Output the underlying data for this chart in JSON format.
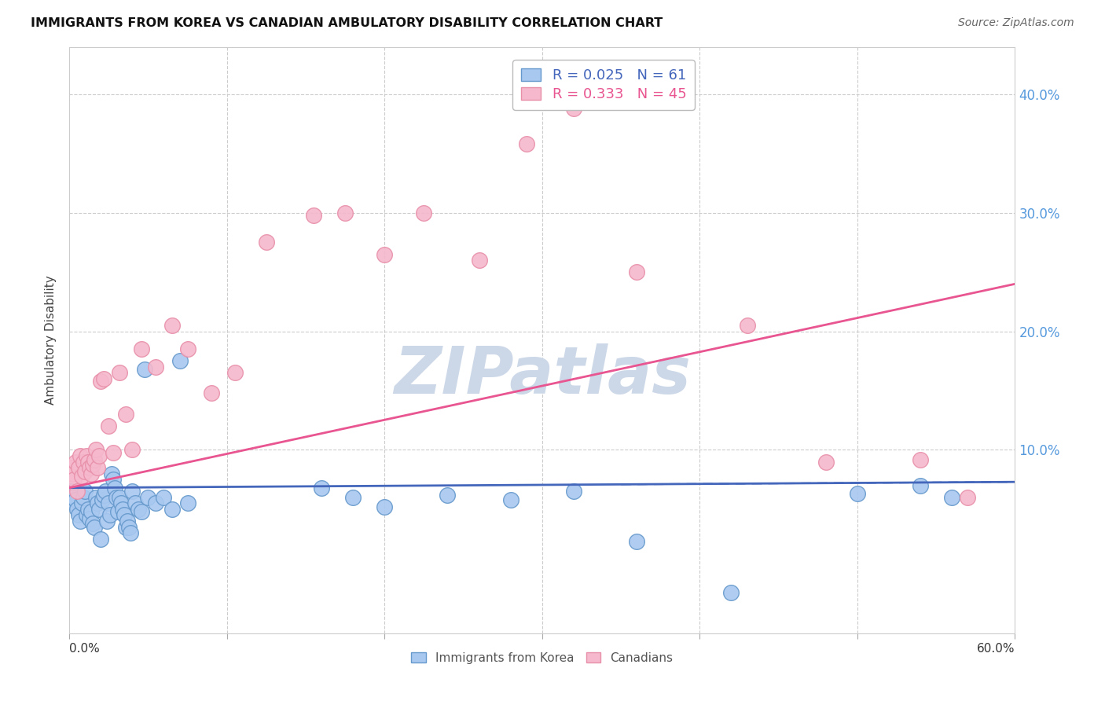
{
  "title": "IMMIGRANTS FROM KOREA VS CANADIAN AMBULATORY DISABILITY CORRELATION CHART",
  "source": "Source: ZipAtlas.com",
  "ylabel": "Ambulatory Disability",
  "xlim": [
    0.0,
    0.6
  ],
  "ylim": [
    -0.055,
    0.44
  ],
  "ytick_values": [
    0.1,
    0.2,
    0.3,
    0.4
  ],
  "ytick_labels": [
    "10.0%",
    "20.0%",
    "30.0%",
    "40.0%"
  ],
  "xtick_values": [
    0.0,
    0.1,
    0.2,
    0.3,
    0.4,
    0.5,
    0.6
  ],
  "color_korea": "#a8c8f0",
  "color_canada": "#f5b8cc",
  "edge_korea": "#6699cc",
  "edge_canada": "#e890aa",
  "line_color_korea": "#4466bb",
  "line_color_canada": "#e85590",
  "watermark_color": "#ccd8e8",
  "background_color": "#ffffff",
  "grid_color": "#cccccc",
  "korea_line_y0": 0.068,
  "korea_line_y1": 0.073,
  "canada_line_y0": 0.068,
  "canada_line_y1": 0.24,
  "korea_x": [
    0.001,
    0.002,
    0.003,
    0.004,
    0.005,
    0.006,
    0.007,
    0.008,
    0.009,
    0.01,
    0.011,
    0.012,
    0.013,
    0.014,
    0.015,
    0.016,
    0.017,
    0.018,
    0.019,
    0.02,
    0.021,
    0.022,
    0.023,
    0.024,
    0.025,
    0.026,
    0.027,
    0.028,
    0.029,
    0.03,
    0.031,
    0.032,
    0.033,
    0.034,
    0.035,
    0.036,
    0.037,
    0.038,
    0.039,
    0.04,
    0.042,
    0.044,
    0.046,
    0.048,
    0.05,
    0.055,
    0.06,
    0.065,
    0.07,
    0.075,
    0.16,
    0.18,
    0.2,
    0.24,
    0.28,
    0.32,
    0.36,
    0.42,
    0.5,
    0.54,
    0.56
  ],
  "korea_y": [
    0.065,
    0.06,
    0.055,
    0.058,
    0.05,
    0.045,
    0.04,
    0.055,
    0.06,
    0.065,
    0.045,
    0.05,
    0.042,
    0.048,
    0.038,
    0.035,
    0.06,
    0.055,
    0.05,
    0.025,
    0.058,
    0.062,
    0.065,
    0.04,
    0.055,
    0.045,
    0.08,
    0.075,
    0.068,
    0.06,
    0.048,
    0.06,
    0.055,
    0.05,
    0.045,
    0.035,
    0.04,
    0.035,
    0.03,
    0.065,
    0.055,
    0.05,
    0.048,
    0.168,
    0.06,
    0.055,
    0.06,
    0.05,
    0.175,
    0.055,
    0.068,
    0.06,
    0.052,
    0.062,
    0.058,
    0.065,
    0.023,
    -0.02,
    0.063,
    0.07,
    0.06
  ],
  "canada_x": [
    0.001,
    0.002,
    0.003,
    0.004,
    0.005,
    0.006,
    0.007,
    0.008,
    0.009,
    0.01,
    0.011,
    0.012,
    0.013,
    0.014,
    0.015,
    0.016,
    0.017,
    0.018,
    0.019,
    0.02,
    0.022,
    0.025,
    0.028,
    0.032,
    0.036,
    0.04,
    0.046,
    0.055,
    0.065,
    0.075,
    0.09,
    0.105,
    0.125,
    0.155,
    0.175,
    0.2,
    0.225,
    0.26,
    0.29,
    0.32,
    0.36,
    0.43,
    0.48,
    0.54,
    0.57
  ],
  "canada_y": [
    0.085,
    0.08,
    0.075,
    0.09,
    0.065,
    0.085,
    0.095,
    0.078,
    0.09,
    0.082,
    0.095,
    0.09,
    0.085,
    0.08,
    0.088,
    0.092,
    0.1,
    0.085,
    0.095,
    0.158,
    0.16,
    0.12,
    0.098,
    0.165,
    0.13,
    0.1,
    0.185,
    0.17,
    0.205,
    0.185,
    0.148,
    0.165,
    0.275,
    0.298,
    0.3,
    0.265,
    0.3,
    0.26,
    0.358,
    0.388,
    0.25,
    0.205,
    0.09,
    0.092,
    0.06
  ]
}
